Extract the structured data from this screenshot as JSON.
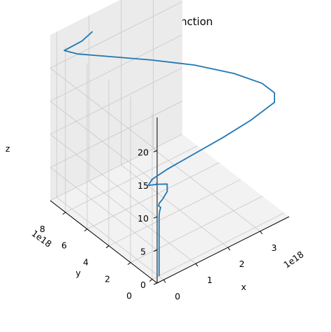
{
  "chart_data": {
    "type": "line",
    "projection": "3d",
    "title": "Goofy ah function",
    "xlabel": "x",
    "ylabel": "y",
    "zlabel": "z",
    "x_offset_label": "1e18",
    "y_offset_label": "1e18",
    "xlim": [
      -0.2,
      3.9
    ],
    "ylim": [
      -0.45,
      9.4
    ],
    "zlim": [
      0,
      25
    ],
    "x_ticks": [
      0,
      1,
      2,
      3
    ],
    "y_ticks": [
      0,
      2,
      4,
      6,
      8
    ],
    "z_ticks": [
      0,
      5,
      10,
      15,
      20
    ],
    "grid": true,
    "series": [
      {
        "color": "#1f77b4",
        "points": [
          [
            0.02,
            0.02,
            0
          ],
          [
            0.02,
            0.02,
            1
          ],
          [
            0.02,
            0.02,
            2
          ],
          [
            0.02,
            0.02,
            3
          ],
          [
            0.02,
            0.02,
            4
          ],
          [
            0.02,
            0.02,
            5
          ],
          [
            0.02,
            0.02,
            6
          ],
          [
            0.02,
            0.02,
            7
          ],
          [
            0.02,
            0.02,
            8
          ],
          [
            0.02,
            0.02,
            9
          ],
          [
            0.05,
            0.06,
            9.6
          ],
          [
            0.08,
            0.05,
            10.1
          ],
          [
            0.03,
            0.1,
            10.4
          ],
          [
            0.06,
            0.12,
            10.7
          ],
          [
            0.15,
            0.12,
            11.0
          ],
          [
            0.35,
            0.25,
            11.6
          ],
          [
            0.45,
            0.55,
            12.1
          ],
          [
            0.25,
            0.75,
            12.3
          ],
          [
            0.0,
            0.95,
            12.5
          ],
          [
            0.15,
            1.05,
            12.9
          ],
          [
            0.55,
            0.85,
            13.7
          ],
          [
            1.3,
            0.55,
            14.6
          ],
          [
            2.1,
            0.3,
            15.4
          ],
          [
            2.9,
            0.15,
            16.2
          ],
          [
            3.7,
            0.3,
            16.8
          ],
          [
            3.85,
            0.75,
            17.3
          ],
          [
            3.75,
            1.6,
            17.9
          ],
          [
            3.35,
            3.0,
            18.6
          ],
          [
            2.7,
            4.7,
            19.3
          ],
          [
            1.9,
            6.3,
            20.0
          ],
          [
            1.1,
            7.7,
            20.7
          ],
          [
            0.45,
            8.8,
            21.3
          ],
          [
            0.2,
            9.3,
            21.8
          ],
          [
            0.7,
            9.15,
            22.2
          ],
          [
            1.05,
            9.25,
            22.6
          ]
        ]
      }
    ]
  }
}
